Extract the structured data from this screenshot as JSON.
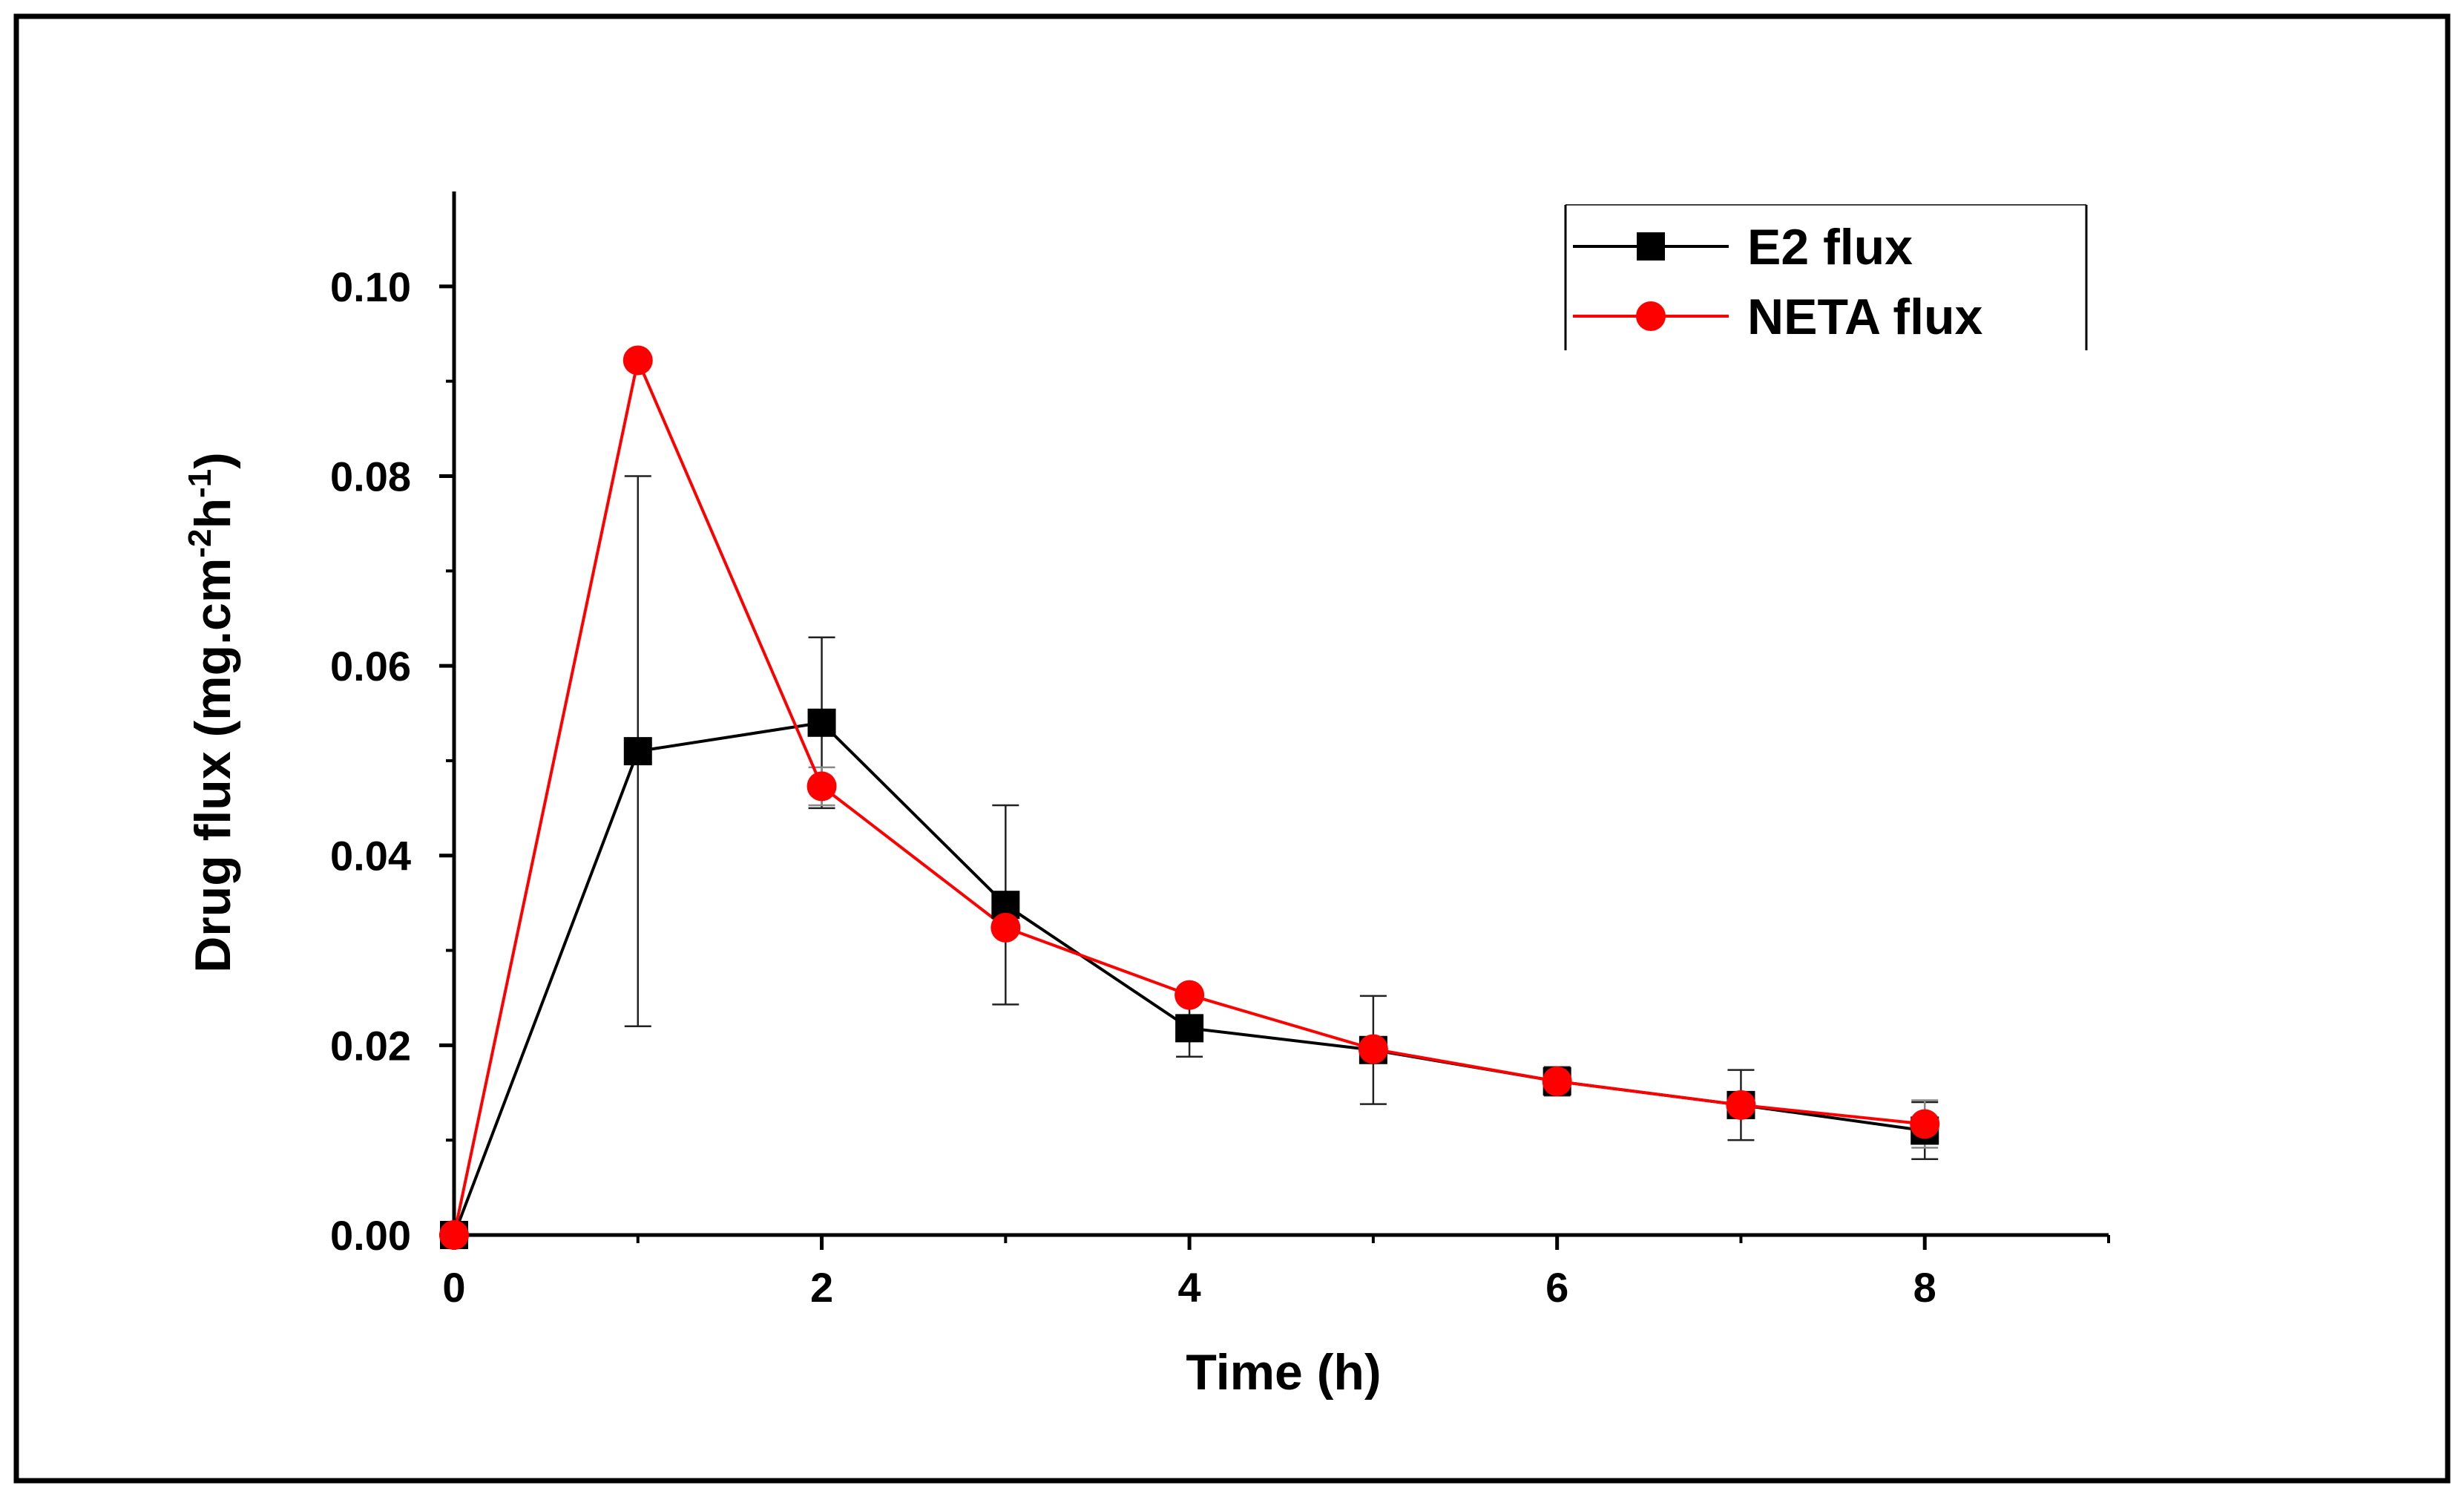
{
  "chart_data": {
    "type": "line",
    "title": "",
    "xlabel": "Time (h)",
    "ylabel": {
      "base": "Drug flux (mg.cm",
      "sup1": "-2",
      "mid": "h",
      "sup2": "-1",
      "end": ")"
    },
    "xlim": [
      0,
      9
    ],
    "ylim": [
      0,
      0.11
    ],
    "xticks": [
      0,
      2,
      4,
      6,
      8
    ],
    "xtick_labels": [
      "0",
      "2",
      "4",
      "6",
      "8"
    ],
    "yticks": [
      0,
      0.02,
      0.04,
      0.06,
      0.08,
      0.1
    ],
    "ytick_labels": [
      "0.00",
      "0.02",
      "0.04",
      "0.06",
      "0.08",
      "0.10"
    ],
    "grid": false,
    "legend_position": "top-right",
    "series": [
      {
        "name": "E2 flux",
        "color": "#000000",
        "marker": "square",
        "x": [
          0,
          1,
          2,
          3,
          4,
          5,
          6,
          7,
          8
        ],
        "y": [
          0.0,
          0.051,
          0.054,
          0.0348,
          0.0218,
          0.0195,
          0.0162,
          0.0137,
          0.011
        ],
        "error": [
          0,
          0.029,
          0.009,
          0.0105,
          0.003,
          0.0057,
          0.0015,
          0.0037,
          0.003
        ]
      },
      {
        "name": "NETA flux",
        "color": "#ff0000",
        "marker": "circle",
        "x": [
          0,
          1,
          2,
          3,
          4,
          5,
          6,
          7,
          8
        ],
        "y": [
          0.0,
          0.0922,
          0.0473,
          0.0324,
          0.0253,
          0.0196,
          0.0162,
          0.0137,
          0.0117
        ],
        "error": [
          0,
          0,
          0.002,
          0,
          0,
          0,
          0,
          0,
          0.0025
        ]
      }
    ]
  }
}
